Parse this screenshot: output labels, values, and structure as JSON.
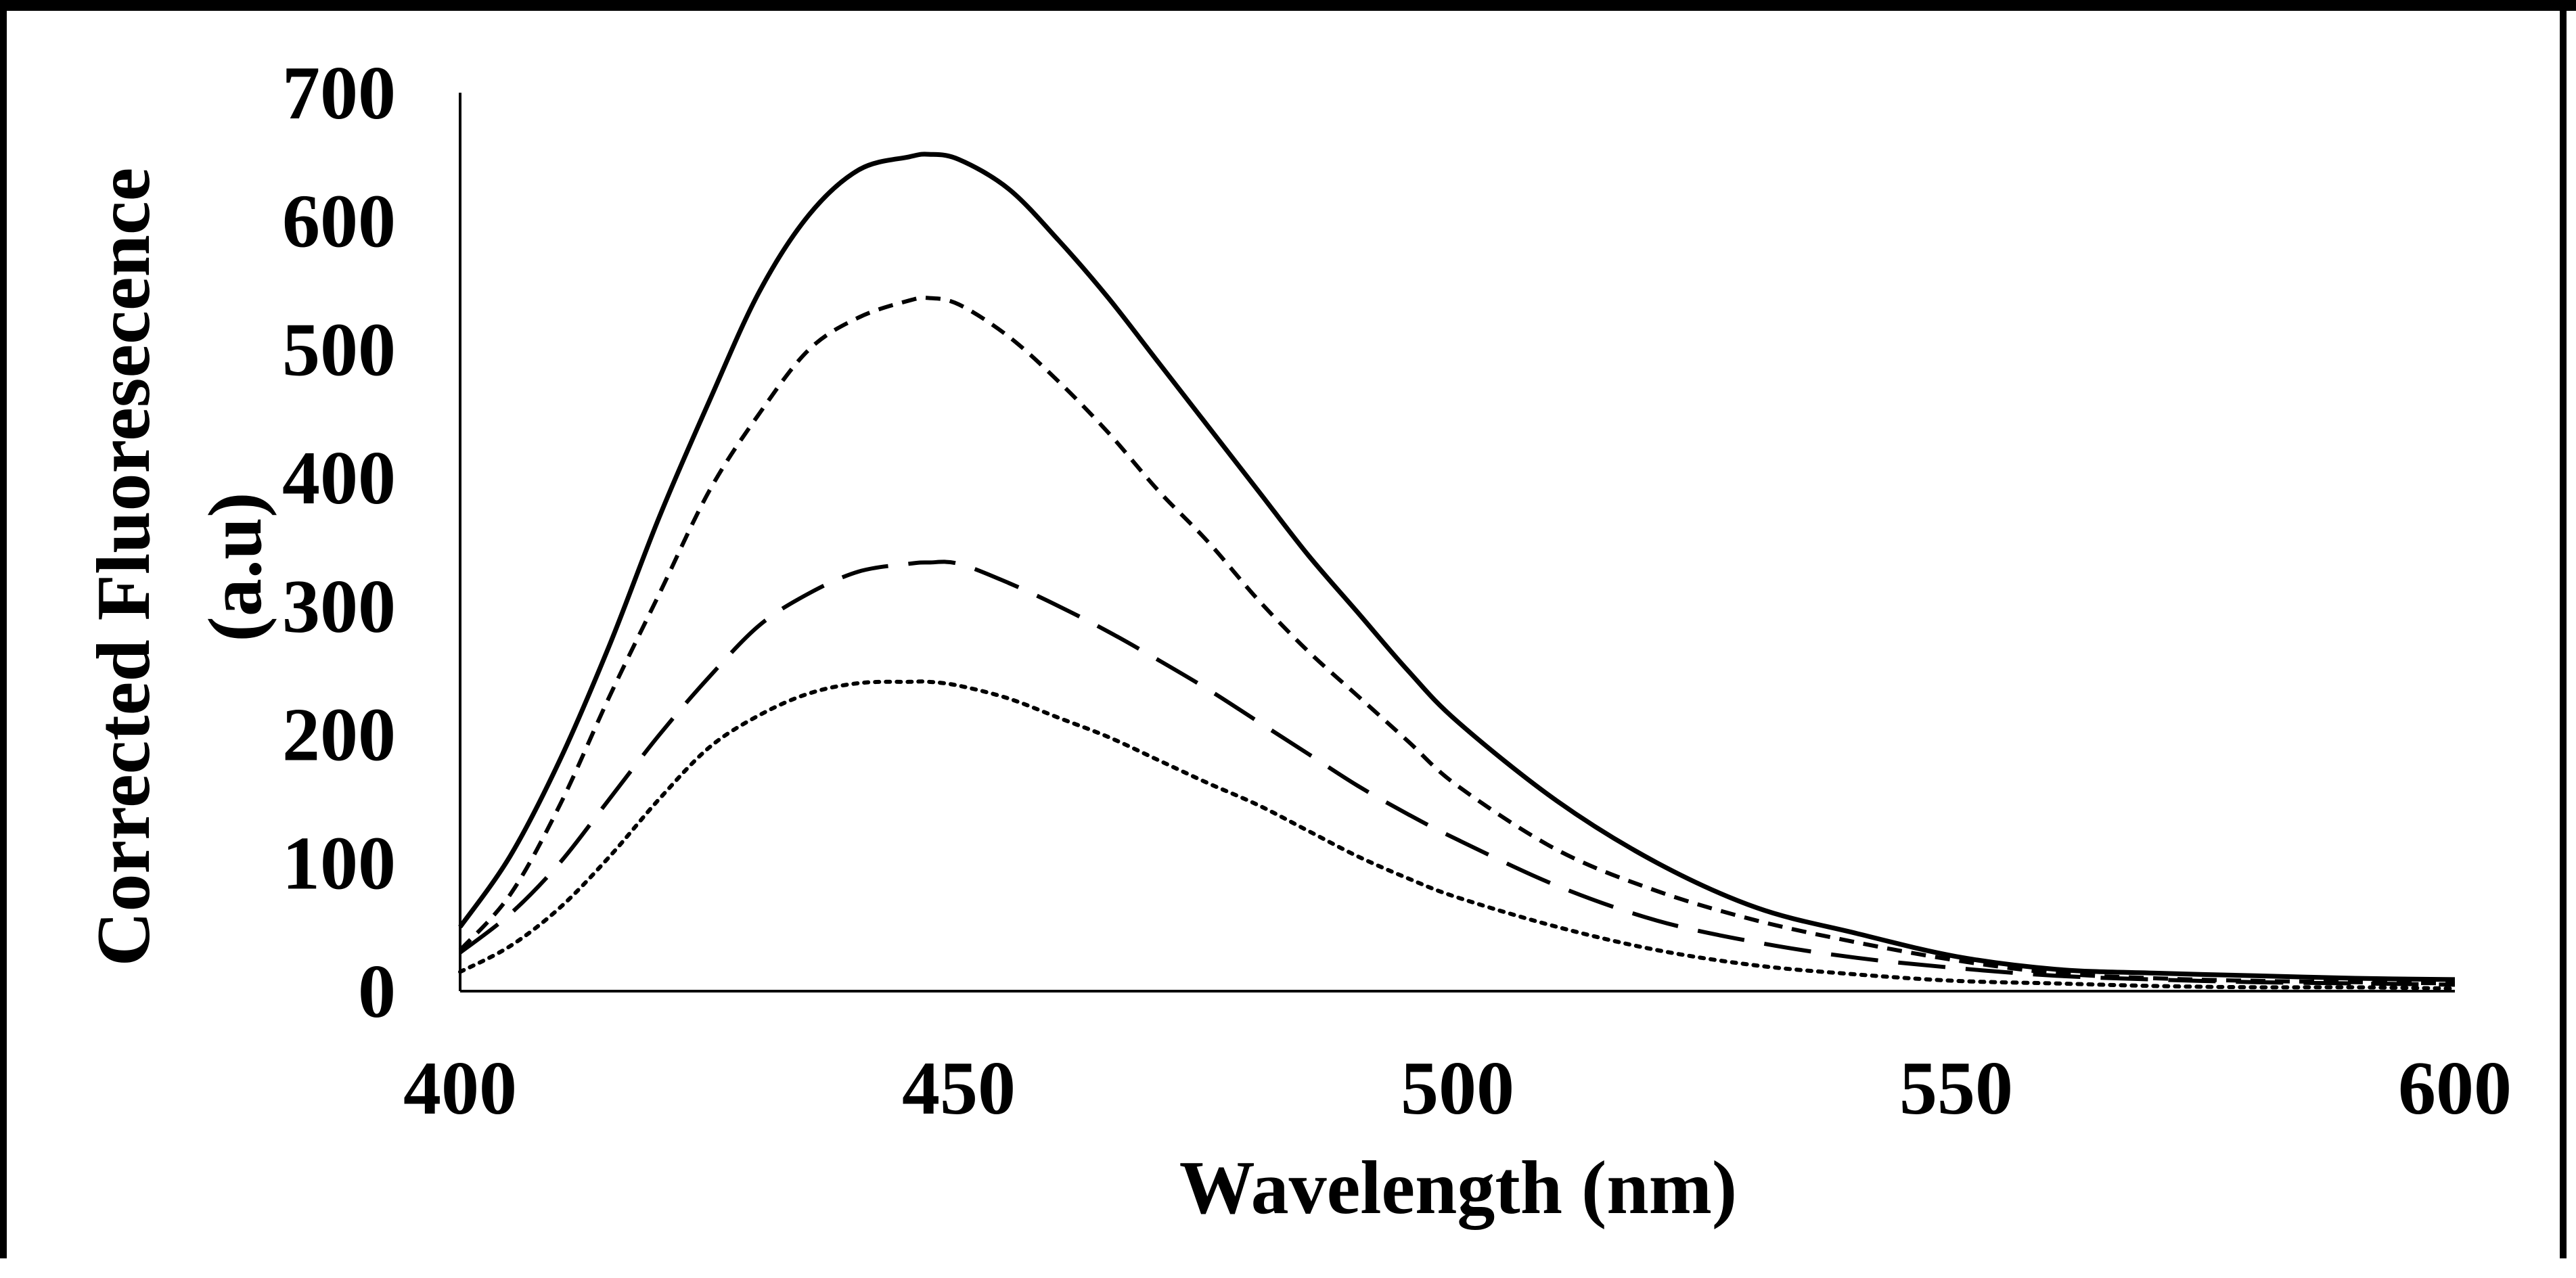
{
  "chart_data": {
    "type": "line",
    "xlabel": "Wavelength (nm)",
    "ylabel_line1": "Corrected Fluoresecence",
    "ylabel_line2": "(a.u)",
    "xlim": [
      400,
      600
    ],
    "ylim": [
      0,
      700
    ],
    "x_ticks": [
      400,
      450,
      500,
      550,
      600
    ],
    "y_ticks": [
      0,
      100,
      200,
      300,
      400,
      500,
      600,
      700
    ],
    "grid": false,
    "legend": "none",
    "line_color": "#000000",
    "x": [
      400,
      405,
      410,
      415,
      420,
      425,
      430,
      435,
      440,
      445,
      447,
      450,
      455,
      460,
      465,
      470,
      475,
      480,
      485,
      490,
      495,
      500,
      510,
      520,
      530,
      540,
      550,
      560,
      570,
      580,
      590,
      600
    ],
    "series": [
      {
        "line_style": "solid",
        "values": [
          50,
          105,
          180,
          270,
          370,
          460,
          545,
          605,
          640,
          650,
          652,
          648,
          625,
          585,
          540,
          490,
          440,
          390,
          340,
          295,
          250,
          210,
          148,
          100,
          65,
          45,
          27,
          17,
          14,
          12,
          10,
          9
        ]
      },
      {
        "line_style": "short-dash",
        "values": [
          32,
          75,
          145,
          230,
          310,
          390,
          450,
          500,
          525,
          538,
          540,
          535,
          510,
          475,
          435,
          390,
          350,
          305,
          265,
          230,
          195,
          160,
          110,
          78,
          55,
          38,
          24,
          14,
          10,
          8,
          7,
          6
        ]
      },
      {
        "line_style": "long-dash",
        "values": [
          30,
          60,
          100,
          150,
          200,
          245,
          285,
          310,
          327,
          333,
          334,
          333,
          318,
          300,
          280,
          258,
          235,
          210,
          185,
          160,
          138,
          118,
          82,
          55,
          38,
          26,
          18,
          12,
          9,
          7,
          6,
          5
        ]
      },
      {
        "line_style": "dotted",
        "values": [
          15,
          35,
          65,
          105,
          150,
          190,
          215,
          232,
          240,
          241,
          241,
          238,
          228,
          213,
          198,
          180,
          162,
          145,
          125,
          105,
          88,
          73,
          50,
          32,
          20,
          13,
          8,
          6,
          4,
          3,
          3,
          2
        ]
      }
    ]
  }
}
